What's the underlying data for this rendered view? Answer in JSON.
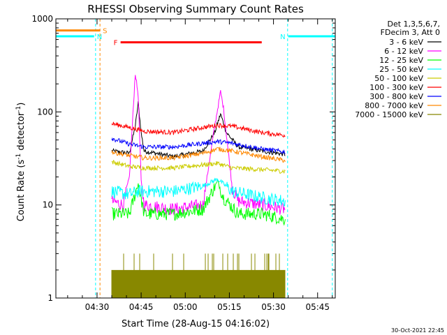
{
  "chart_data": {
    "type": "line",
    "title": "RHESSI Observing Summary Count Rates",
    "xlabel": "Start Time (28-Aug-15 04:16:02)",
    "ylabel_main": "Count Rate (s",
    "ylabel_sup1": "-1",
    "ylabel_mid": " detector",
    "ylabel_sup2": "-1",
    "ylabel_end": ")",
    "yscale": "log",
    "ylim": [
      1,
      1000
    ],
    "xlim_minutes": [
      0,
      95
    ],
    "x_ticks": [
      {
        "minute": 14,
        "label": "04:30"
      },
      {
        "minute": 29,
        "label": "04:45"
      },
      {
        "minute": 44,
        "label": "05:00"
      },
      {
        "minute": 59,
        "label": "05:15"
      },
      {
        "minute": 74,
        "label": "05:30"
      },
      {
        "minute": 89,
        "label": "05:45"
      }
    ],
    "y_ticks": [
      {
        "value": 1,
        "label": "1"
      },
      {
        "value": 10,
        "label": "10"
      },
      {
        "value": 100,
        "label": "100"
      },
      {
        "value": 1000,
        "label": "1000"
      }
    ],
    "legend_header": [
      "Det 1,3,5,6,7,",
      "FDecim 3, Att 0"
    ],
    "series": [
      {
        "name": "3 - 6 keV",
        "color": "#000000",
        "points": [
          [
            19,
            38
          ],
          [
            25,
            36
          ],
          [
            27,
            70
          ],
          [
            28,
            125
          ],
          [
            29,
            60
          ],
          [
            30,
            38
          ],
          [
            40,
            33
          ],
          [
            50,
            38
          ],
          [
            54,
            60
          ],
          [
            56,
            95
          ],
          [
            58,
            60
          ],
          [
            62,
            42
          ],
          [
            70,
            38
          ],
          [
            78,
            35
          ]
        ]
      },
      {
        "name": "6 - 12 keV",
        "color": "#ff00ff",
        "points": [
          [
            19,
            11
          ],
          [
            23,
            10
          ],
          [
            25,
            20
          ],
          [
            27,
            260
          ],
          [
            28,
            150
          ],
          [
            29,
            18
          ],
          [
            30,
            10
          ],
          [
            40,
            9
          ],
          [
            50,
            10
          ],
          [
            54,
            70
          ],
          [
            56,
            165
          ],
          [
            57,
            110
          ],
          [
            60,
            15
          ],
          [
            62,
            11
          ],
          [
            70,
            10
          ],
          [
            78,
            9
          ]
        ]
      },
      {
        "name": "12 - 25 keV",
        "color": "#00ff00",
        "points": [
          [
            19,
            8
          ],
          [
            25,
            8
          ],
          [
            28,
            17
          ],
          [
            30,
            8
          ],
          [
            40,
            8
          ],
          [
            50,
            9
          ],
          [
            55,
            18
          ],
          [
            57,
            12
          ],
          [
            62,
            8
          ],
          [
            70,
            8
          ],
          [
            78,
            7
          ]
        ]
      },
      {
        "name": "25 - 50 keV",
        "color": "#00ffff",
        "points": [
          [
            19,
            14
          ],
          [
            25,
            13
          ],
          [
            28,
            14
          ],
          [
            40,
            14
          ],
          [
            50,
            16
          ],
          [
            55,
            19
          ],
          [
            60,
            14
          ],
          [
            70,
            12
          ],
          [
            78,
            11
          ]
        ]
      },
      {
        "name": "50 - 100 keV",
        "color": "#cccc00",
        "points": [
          [
            19,
            29
          ],
          [
            25,
            26
          ],
          [
            30,
            25
          ],
          [
            40,
            25
          ],
          [
            50,
            27
          ],
          [
            55,
            28
          ],
          [
            60,
            25
          ],
          [
            70,
            24
          ],
          [
            78,
            23
          ]
        ]
      },
      {
        "name": "100 - 300 keV",
        "color": "#ff0000",
        "points": [
          [
            19,
            75
          ],
          [
            25,
            68
          ],
          [
            30,
            62
          ],
          [
            40,
            60
          ],
          [
            50,
            68
          ],
          [
            55,
            72
          ],
          [
            60,
            70
          ],
          [
            70,
            60
          ],
          [
            78,
            56
          ]
        ]
      },
      {
        "name": "300 - 800 keV",
        "color": "#0000ff",
        "points": [
          [
            19,
            52
          ],
          [
            25,
            45
          ],
          [
            30,
            42
          ],
          [
            40,
            42
          ],
          [
            50,
            46
          ],
          [
            55,
            48
          ],
          [
            60,
            46
          ],
          [
            70,
            40
          ],
          [
            78,
            37
          ]
        ]
      },
      {
        "name": "800 - 7000 keV",
        "color": "#ff8800",
        "points": [
          [
            19,
            37
          ],
          [
            25,
            34
          ],
          [
            30,
            32
          ],
          [
            40,
            32
          ],
          [
            50,
            36
          ],
          [
            55,
            40
          ],
          [
            60,
            38
          ],
          [
            70,
            33
          ],
          [
            78,
            30
          ]
        ]
      },
      {
        "name": "7000 - 15000 keV",
        "color": "#888800",
        "points": [
          [
            19,
            2
          ],
          [
            78,
            2
          ]
        ]
      }
    ],
    "annotations": [
      {
        "label": "S",
        "color": "#ff8800",
        "y_value": 750,
        "x_start": 0,
        "x_end": 15
      },
      {
        "label": "N",
        "color": "#00ffff",
        "y_value": 650,
        "x_start": 0,
        "x_end": 13
      },
      {
        "label": "N",
        "color": "#00ffff",
        "y_value": 650,
        "x_start": 79,
        "x_end": 95
      },
      {
        "label": "F",
        "color": "#ff0000",
        "y_value": 560,
        "x_start": 22,
        "x_end": 70
      }
    ],
    "vertical_lines": [
      {
        "minute": 13.5,
        "color": "#00ffff"
      },
      {
        "minute": 15,
        "color": "#ff8800"
      },
      {
        "minute": 78.8,
        "color": "#00ffff"
      },
      {
        "minute": 94,
        "color": "#00ffff"
      }
    ]
  },
  "timestamp": "30-Oct-2021 22:45"
}
